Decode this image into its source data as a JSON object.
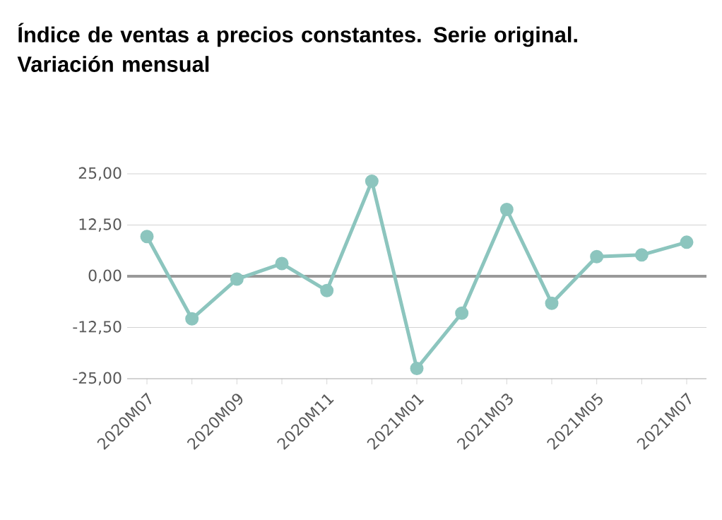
{
  "chart_data": {
    "type": "line",
    "title": "Índice de ventas a precios constantes. Serie original. Variación mensual",
    "categories": [
      "2020M07",
      null,
      "2020M09",
      null,
      "2020M11",
      null,
      "2021M01",
      null,
      "2021M03",
      null,
      "2021M05",
      null,
      "2021M07"
    ],
    "series": [
      {
        "color": "#8cc5be",
        "values": [
          9.7,
          -10.4,
          -0.7,
          3.1,
          -3.5,
          23.2,
          -22.5,
          -9.0,
          16.3,
          -6.6,
          4.8,
          5.2,
          8.3
        ]
      }
    ],
    "ylim": [
      -25,
      25
    ],
    "yticks": [
      {
        "value": -25,
        "label": "-25,00"
      },
      {
        "value": -12.5,
        "label": "-12,50"
      },
      {
        "value": 0,
        "label": "0,00"
      },
      {
        "value": 12.5,
        "label": "12,50"
      },
      {
        "value": 25,
        "label": "25,00"
      }
    ],
    "ref_lines": [
      {
        "axis": "y",
        "value": 0,
        "color": "#999999"
      }
    ],
    "grid": "y",
    "marker": "circle",
    "line_style": "solid"
  }
}
